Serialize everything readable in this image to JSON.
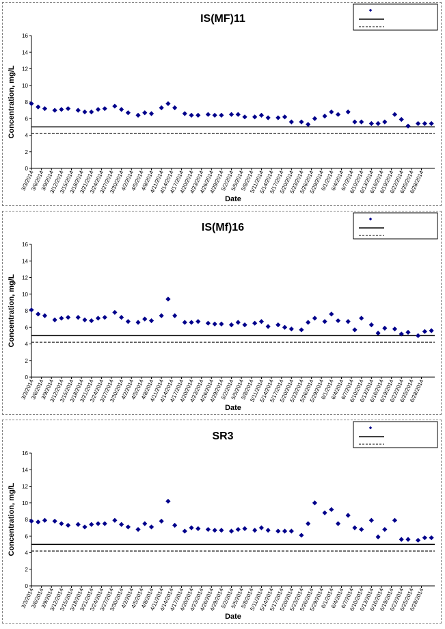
{
  "chart_data": [
    {
      "type": "scatter",
      "title": "IS(MF)11",
      "xlabel": "Date",
      "ylabel": "Concentration, mg/L",
      "ylim": [
        0,
        16
      ],
      "yticks": [
        "0",
        "2",
        "4",
        "6",
        "8",
        "10",
        "12",
        "14",
        "16"
      ],
      "xlim_days": [
        62,
        183
      ],
      "categories": [
        "3/3/2014",
        "3/6/2014",
        "3/9/2014",
        "3/12/2014",
        "3/15/2014",
        "3/18/2014",
        "3/21/2014",
        "3/24/2014",
        "3/27/2014",
        "3/30/2014",
        "4/2/2014",
        "4/5/2014",
        "4/8/2014",
        "4/11/2014",
        "4/14/2014",
        "4/17/2014",
        "4/20/2014",
        "4/23/2014",
        "4/26/2014",
        "4/29/2014",
        "5/2/2014",
        "5/5/2014",
        "5/8/2014",
        "5/11/2014",
        "5/14/2014",
        "5/17/2014",
        "5/20/2014",
        "5/23/2014",
        "5/26/2014",
        "5/29/2014",
        "6/1/2014",
        "6/4/2014",
        "6/7/2014",
        "6/10/2014",
        "6/13/2014",
        "6/16/2014",
        "6/19/2014",
        "6/22/2014",
        "6/25/2014",
        "6/28/2014"
      ],
      "series": [
        {
          "legend": true,
          "color": "#00008B",
          "x_days": [
            62,
            64,
            66,
            69,
            71,
            73,
            76,
            78,
            80,
            82,
            84,
            87,
            89,
            91,
            94,
            96,
            98,
            101,
            103,
            105,
            108,
            110,
            112,
            115,
            117,
            119,
            122,
            124,
            126,
            129,
            131,
            133,
            136,
            138,
            140,
            143,
            145,
            147,
            150,
            152,
            154,
            157,
            159,
            161,
            164,
            166,
            168,
            171,
            173,
            175,
            178,
            180,
            182
          ],
          "y": [
            7.8,
            7.4,
            7.2,
            7.0,
            7.1,
            7.2,
            7.0,
            6.8,
            6.8,
            7.1,
            7.2,
            7.5,
            7.1,
            6.7,
            6.4,
            6.7,
            6.6,
            7.3,
            7.8,
            7.3,
            6.6,
            6.4,
            6.4,
            6.5,
            6.4,
            6.4,
            6.5,
            6.5,
            6.2,
            6.2,
            6.4,
            6.1,
            6.1,
            6.2,
            5.6,
            5.6,
            5.3,
            6.0,
            6.3,
            6.8,
            6.5,
            6.8,
            5.6,
            5.6,
            5.4,
            5.4,
            5.6,
            6.5,
            5.9,
            5.1,
            5.4,
            5.4,
            5.4
          ]
        }
      ],
      "reference_lines": [
        {
          "y": 5.0,
          "style": "solid"
        },
        {
          "y": 4.2,
          "style": "dashed"
        }
      ],
      "legend_position": "top-right"
    },
    {
      "type": "scatter",
      "title": "IS(Mf)16",
      "xlabel": "Date",
      "ylabel": "Concentration, mg/L",
      "ylim": [
        0,
        16
      ],
      "yticks": [
        "0",
        "2",
        "4",
        "6",
        "8",
        "10",
        "12",
        "14",
        "16"
      ],
      "xlim_days": [
        62,
        183
      ],
      "categories": [
        "3/3/2014",
        "3/6/2014",
        "3/9/2014",
        "3/12/2014",
        "3/15/2014",
        "3/18/2014",
        "3/21/2014",
        "3/24/2014",
        "3/27/2014",
        "3/30/2014",
        "4/2/2014",
        "4/5/2014",
        "4/8/2014",
        "4/11/2014",
        "4/14/2014",
        "4/17/2014",
        "4/20/2014",
        "4/23/2014",
        "4/26/2014",
        "4/29/2014",
        "5/2/2014",
        "5/5/2014",
        "5/8/2014",
        "5/11/2014",
        "5/14/2014",
        "5/17/2014",
        "5/20/2014",
        "5/23/2014",
        "5/26/2014",
        "5/29/2014",
        "6/1/2014",
        "6/4/2014",
        "6/7/2014",
        "6/10/2014",
        "6/13/2014",
        "6/16/2014",
        "6/19/2014",
        "6/22/2014",
        "6/25/2014",
        "6/28/2014"
      ],
      "series": [
        {
          "legend": true,
          "color": "#00008B",
          "x_days": [
            62,
            64,
            66,
            69,
            71,
            73,
            76,
            78,
            80,
            82,
            84,
            87,
            89,
            91,
            94,
            96,
            98,
            101,
            103,
            105,
            108,
            110,
            112,
            115,
            117,
            119,
            122,
            124,
            126,
            129,
            131,
            133,
            136,
            138,
            140,
            143,
            145,
            147,
            150,
            152,
            154,
            157,
            159,
            161,
            164,
            166,
            168,
            171,
            173,
            175,
            178,
            180,
            182
          ],
          "y": [
            8.1,
            7.6,
            7.4,
            6.9,
            7.1,
            7.2,
            7.2,
            6.9,
            6.8,
            7.1,
            7.2,
            7.8,
            7.2,
            6.7,
            6.6,
            7.0,
            6.8,
            7.4,
            9.4,
            7.4,
            6.6,
            6.6,
            6.7,
            6.5,
            6.4,
            6.4,
            6.3,
            6.6,
            6.3,
            6.5,
            6.7,
            6.1,
            6.3,
            6.0,
            5.8,
            5.7,
            6.6,
            7.1,
            6.7,
            7.6,
            6.8,
            6.7,
            5.7,
            7.1,
            6.3,
            5.3,
            5.9,
            5.8,
            5.2,
            5.4,
            5.0,
            5.5,
            5.6
          ]
        }
      ],
      "reference_lines": [
        {
          "y": 5.0,
          "style": "solid"
        },
        {
          "y": 4.2,
          "style": "dashed"
        }
      ],
      "legend_position": "top-right"
    },
    {
      "type": "scatter",
      "title": "SR3",
      "xlabel": "Date",
      "ylabel": "Concentration, mg/L",
      "ylim": [
        0,
        16
      ],
      "yticks": [
        "0",
        "2",
        "4",
        "6",
        "8",
        "10",
        "12",
        "14",
        "16"
      ],
      "xlim_days": [
        62,
        183
      ],
      "categories": [
        "3/3/2014",
        "3/6/2014",
        "3/9/2014",
        "3/12/2014",
        "3/15/2014",
        "3/18/2014",
        "3/21/2014",
        "3/24/2014",
        "3/27/2014",
        "3/30/2014",
        "4/2/2014",
        "4/5/2014",
        "4/8/2014",
        "4/11/2014",
        "4/14/2014",
        "4/17/2014",
        "4/20/2014",
        "4/23/2014",
        "4/26/2014",
        "4/29/2014",
        "5/2/2014",
        "5/5/2014",
        "5/8/2014",
        "5/11/2014",
        "5/14/2014",
        "5/17/2014",
        "5/20/2014",
        "5/23/2014",
        "5/26/2014",
        "5/29/2014",
        "6/1/2014",
        "6/4/2014",
        "6/7/2014",
        "6/10/2014",
        "6/13/2014",
        "6/16/2014",
        "6/19/2014",
        "6/22/2014",
        "6/25/2014",
        "6/28/2014"
      ],
      "series": [
        {
          "legend": true,
          "color": "#00008B",
          "x_days": [
            62,
            64,
            66,
            69,
            71,
            73,
            76,
            78,
            80,
            82,
            84,
            87,
            89,
            91,
            94,
            96,
            98,
            101,
            103,
            105,
            108,
            110,
            112,
            115,
            117,
            119,
            122,
            124,
            126,
            129,
            131,
            133,
            136,
            138,
            140,
            143,
            145,
            147,
            150,
            152,
            154,
            157,
            159,
            161,
            164,
            166,
            168,
            171,
            173,
            175,
            178,
            180,
            182
          ],
          "y": [
            7.8,
            7.7,
            7.9,
            7.8,
            7.5,
            7.3,
            7.4,
            7.1,
            7.4,
            7.5,
            7.5,
            7.9,
            7.4,
            7.1,
            6.8,
            7.5,
            7.1,
            7.8,
            10.2,
            7.3,
            6.6,
            7.0,
            6.9,
            6.8,
            6.7,
            6.7,
            6.6,
            6.8,
            6.9,
            6.7,
            7.0,
            6.7,
            6.6,
            6.6,
            6.6,
            6.1,
            7.5,
            10.0,
            8.8,
            9.2,
            7.5,
            8.5,
            7.0,
            6.8,
            7.9,
            5.9,
            6.8,
            7.9,
            5.6,
            5.6,
            5.5,
            5.8,
            5.8
          ]
        }
      ],
      "reference_lines": [
        {
          "y": 5.0,
          "style": "solid"
        },
        {
          "y": 4.2,
          "style": "dashed"
        }
      ],
      "legend_position": "top-right"
    }
  ]
}
